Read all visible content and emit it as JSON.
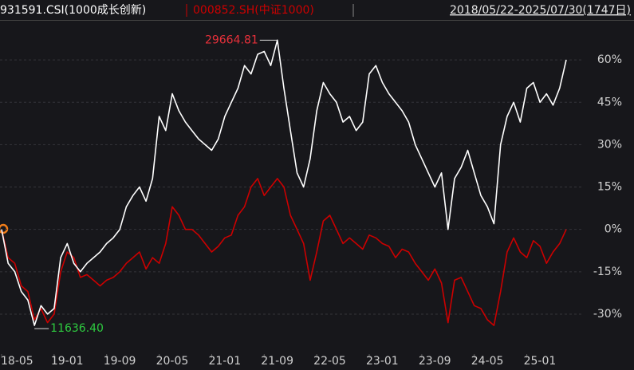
{
  "chart_data": {
    "type": "line",
    "subtitle": "2018/05/22-2025/07/30(1747日)",
    "x": [
      "18-05",
      "18-06",
      "18-07",
      "18-08",
      "18-09",
      "18-10",
      "18-11",
      "18-12",
      "19-01",
      "19-02",
      "19-03",
      "19-04",
      "19-05",
      "19-06",
      "19-07",
      "19-08",
      "19-09",
      "19-10",
      "19-11",
      "19-12",
      "20-01",
      "20-02",
      "20-03",
      "20-04",
      "20-05",
      "20-06",
      "20-07",
      "20-08",
      "20-09",
      "20-10",
      "20-11",
      "20-12",
      "21-01",
      "21-02",
      "21-03",
      "21-04",
      "21-05",
      "21-06",
      "21-07",
      "21-08",
      "21-09",
      "21-10",
      "21-11",
      "21-12",
      "22-01",
      "22-02",
      "22-03",
      "22-04",
      "22-05",
      "22-06",
      "22-07",
      "22-08",
      "22-09",
      "22-10",
      "22-11",
      "22-12",
      "23-01",
      "23-02",
      "23-03",
      "23-04",
      "23-05",
      "23-06",
      "23-07",
      "23-08",
      "23-09",
      "23-10",
      "23-11",
      "23-12",
      "24-01",
      "24-02",
      "24-03",
      "24-04",
      "24-05",
      "24-06",
      "24-07",
      "24-08",
      "24-09",
      "24-10",
      "24-11",
      "24-12",
      "25-01",
      "25-02",
      "25-03",
      "25-04",
      "25-05",
      "25-06",
      "25-07"
    ],
    "series": [
      {
        "name": "931591.CSI(1000成长创新)",
        "color": "#ffffff",
        "values": [
          0,
          -12,
          -15,
          -22,
          -25,
          -34,
          -27,
          -30,
          -28,
          -10,
          -5,
          -12,
          -15,
          -12,
          -10,
          -8,
          -5,
          -3,
          0,
          8,
          12,
          15,
          10,
          18,
          40,
          35,
          48,
          42,
          38,
          35,
          32,
          30,
          28,
          32,
          40,
          45,
          50,
          58,
          55,
          62,
          63,
          58,
          67,
          50,
          35,
          20,
          15,
          25,
          42,
          52,
          48,
          45,
          38,
          40,
          35,
          38,
          55,
          58,
          52,
          48,
          45,
          42,
          38,
          30,
          25,
          20,
          15,
          20,
          0,
          18,
          22,
          28,
          20,
          12,
          8,
          2,
          30,
          40,
          45,
          38,
          50,
          52,
          45,
          48,
          44,
          50,
          60
        ]
      },
      {
        "name": "000852.SH(中证1000)",
        "color": "#cc0000",
        "values": [
          0,
          -10,
          -12,
          -20,
          -22,
          -32,
          -28,
          -33,
          -30,
          -15,
          -8,
          -10,
          -17,
          -16,
          -18,
          -20,
          -18,
          -17,
          -15,
          -12,
          -10,
          -8,
          -14,
          -10,
          -12,
          -5,
          8,
          5,
          0,
          0,
          -2,
          -5,
          -8,
          -6,
          -3,
          -2,
          5,
          8,
          15,
          18,
          12,
          15,
          18,
          15,
          5,
          0,
          -5,
          -18,
          -8,
          3,
          5,
          0,
          -5,
          -3,
          -5,
          -7,
          -2,
          -3,
          -5,
          -6,
          -10,
          -7,
          -8,
          -12,
          -15,
          -18,
          -14,
          -19,
          -33,
          -18,
          -17,
          -22,
          -27,
          -28,
          -32,
          -34,
          -22,
          -8,
          -3,
          -8,
          -10,
          -4,
          -6,
          -12,
          -8,
          -5,
          0
        ]
      }
    ],
    "xticks": [
      "18-05",
      "19-01",
      "19-09",
      "20-05",
      "21-01",
      "21-09",
      "22-05",
      "23-01",
      "23-09",
      "24-05",
      "25-01"
    ],
    "ylim": [
      -43,
      75
    ],
    "yticks": [
      {
        "value": 60,
        "label": "60%"
      },
      {
        "value": 45,
        "label": "45%"
      },
      {
        "value": 30,
        "label": "30%"
      },
      {
        "value": 15,
        "label": "15%"
      },
      {
        "value": 0,
        "label": "0%"
      },
      {
        "value": -15,
        "label": "-15%"
      },
      {
        "value": -30,
        "label": "-30%"
      }
    ],
    "grid": true,
    "annotations": [
      {
        "text": "29664.81",
        "color": "#e8303a"
      },
      {
        "text": "11636.40",
        "color": "#2ecc40"
      }
    ]
  }
}
